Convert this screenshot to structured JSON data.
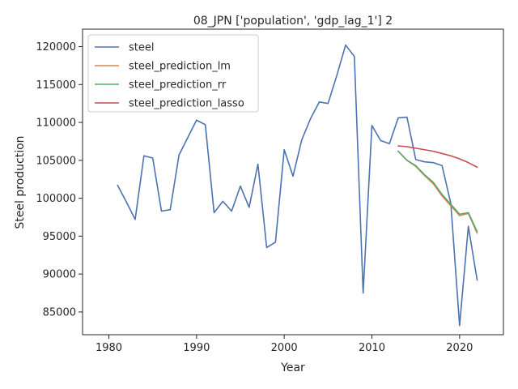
{
  "chart_data": {
    "type": "line",
    "title": "08_JPN ['population', 'gdp_lag_1'] 2",
    "xlabel": "Year",
    "ylabel": "Steel production",
    "xlim": [
      1977,
      2025
    ],
    "ylim": [
      82000,
      122300
    ],
    "xticks": [
      1980,
      1990,
      2000,
      2010,
      2020
    ],
    "yticks": [
      85000,
      90000,
      95000,
      100000,
      105000,
      110000,
      115000,
      120000
    ],
    "legend_position": "top-left",
    "grid": false,
    "series": [
      {
        "name": "steel",
        "color": "#4c72b0",
        "x": [
          1981,
          1982,
          1983,
          1984,
          1985,
          1986,
          1987,
          1988,
          1989,
          1990,
          1991,
          1992,
          1993,
          1994,
          1995,
          1996,
          1997,
          1998,
          1999,
          2000,
          2001,
          2002,
          2003,
          2004,
          2005,
          2006,
          2007,
          2008,
          2009,
          2010,
          2011,
          2012,
          2013,
          2014,
          2015,
          2016,
          2017,
          2018,
          2019,
          2020,
          2021,
          2022
        ],
        "y": [
          101700,
          99500,
          97200,
          105600,
          105300,
          98300,
          98500,
          105700,
          108000,
          110300,
          109700,
          98100,
          99600,
          98300,
          101600,
          98800,
          104500,
          93500,
          94200,
          106400,
          102900,
          107700,
          110500,
          112700,
          112500,
          116200,
          120200,
          118700,
          87500,
          109600,
          107600,
          107200,
          110600,
          110700,
          105100,
          104800,
          104700,
          104300,
          99300,
          83200,
          96300,
          89200
        ]
      },
      {
        "name": "steel_prediction_lm",
        "color": "#dd8452",
        "x": [
          2013,
          2014,
          2015,
          2016,
          2017,
          2018,
          2019,
          2020,
          2021,
          2022
        ],
        "y": [
          106200,
          105000,
          104200,
          103000,
          101900,
          100300,
          99000,
          97700,
          98000,
          95400
        ]
      },
      {
        "name": "steel_prediction_rr",
        "color": "#55a868",
        "x": [
          2013,
          2014,
          2015,
          2016,
          2017,
          2018,
          2019,
          2020,
          2021,
          2022
        ],
        "y": [
          106200,
          105000,
          104300,
          103100,
          102100,
          100500,
          99200,
          97900,
          98100,
          95600
        ]
      },
      {
        "name": "steel_prediction_lasso",
        "color": "#c44e52",
        "x": [
          2013,
          2014,
          2015,
          2016,
          2017,
          2018,
          2019,
          2020,
          2021,
          2022
        ],
        "y": [
          106900,
          106800,
          106600,
          106400,
          106200,
          105900,
          105600,
          105200,
          104700,
          104100
        ]
      }
    ]
  }
}
